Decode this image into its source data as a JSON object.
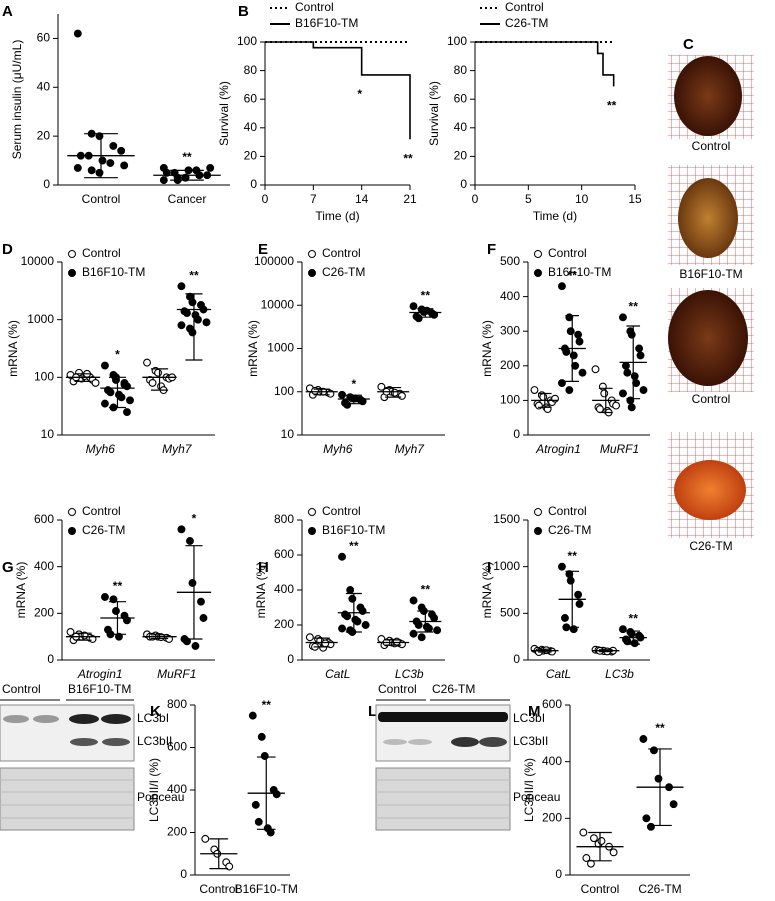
{
  "chart_data": [
    {
      "panel": "A",
      "type": "dot",
      "ylabel": "Serum insulin (μU/mL)",
      "categories": [
        "Control",
        "Cancer"
      ],
      "ylim": [
        0,
        70
      ],
      "yticks": [
        0,
        20,
        40,
        60
      ],
      "series": [
        {
          "color": "#000",
          "markers": [
            "filled",
            "filled"
          ],
          "values": [
            [
              62,
              21,
              20,
              16,
              14,
              12,
              12,
              10,
              9,
              8,
              7,
              6,
              5
            ],
            [
              2,
              3,
              3,
              4,
              4,
              5,
              5,
              6,
              6,
              7,
              7,
              2,
              3,
              4
            ]
          ],
          "means": [
            12,
            4
          ],
          "sds": [
            9,
            2
          ],
          "significance": [
            null,
            "**"
          ]
        }
      ]
    },
    {
      "panel": "B",
      "type": "line",
      "step": true,
      "xlabel": "Time (d)",
      "ylabel": "Survival (%)",
      "x": [
        0,
        7,
        14,
        21
      ],
      "xlim": [
        0,
        21
      ],
      "xticks": [
        0,
        7,
        14,
        21
      ],
      "ylim": [
        0,
        100
      ],
      "yticks": [
        0,
        20,
        40,
        60,
        80,
        100
      ],
      "series": [
        {
          "name": "Control",
          "color": "#000",
          "dash": "dotted",
          "values": [
            100,
            100,
            100,
            100
          ],
          "significance": [
            null,
            null,
            null,
            null
          ]
        },
        {
          "name": "B16F10-TM",
          "color": "#000",
          "dash": "solid",
          "values": [
            100,
            96,
            77,
            32
          ],
          "significance": [
            null,
            null,
            "*",
            "**"
          ]
        }
      ]
    },
    {
      "type": "line",
      "step": true,
      "xlabel": "Time (d)",
      "ylabel": "Survival (%)",
      "x": [
        0,
        11.5,
        12,
        13
      ],
      "xlim": [
        0,
        15
      ],
      "xticks": [
        0,
        5,
        10,
        15
      ],
      "ylim": [
        0,
        100
      ],
      "yticks": [
        0,
        20,
        40,
        60,
        80,
        100
      ],
      "series": [
        {
          "name": "Control",
          "color": "#000",
          "dash": "dotted",
          "values": [
            100,
            100,
            100,
            100
          ],
          "significance": [
            null,
            null,
            null,
            null
          ]
        },
        {
          "name": "C26-TM",
          "color": "#000",
          "dash": "solid",
          "values": [
            100,
            92,
            77,
            69
          ],
          "significance": [
            null,
            null,
            null,
            "**"
          ]
        }
      ]
    },
    {
      "panel": "D",
      "type": "dot",
      "log": true,
      "ylabel": "mRNA (%)",
      "categories": [
        "Myh6",
        "Myh7"
      ],
      "category_style": "italic",
      "ylim": [
        10,
        10000
      ],
      "yticks": [
        10,
        100,
        1000,
        10000
      ],
      "series": [
        {
          "name": "Control",
          "color": "#000",
          "markers": [
            "open",
            "open"
          ],
          "values": [
            [
              110,
              120,
              95,
              100,
              90,
              85,
              100,
              105,
              115,
              80
            ],
            [
              180,
              130,
              120,
              100,
              95,
              90,
              80,
              70,
              60,
              100
            ]
          ],
          "means": [
            100,
            100
          ],
          "sds": [
            15,
            40
          ],
          "significance": [
            null,
            null
          ]
        },
        {
          "name": "B16F10-TM",
          "color": "#000",
          "markers": [
            "filled",
            "filled"
          ],
          "values": [
            [
              160,
              110,
              100,
              80,
              70,
              60,
              55,
              50,
              45,
              40,
              35,
              30,
              90,
              75,
              25
            ],
            [
              3800,
              2500,
              2000,
              1800,
              1500,
              1400,
              1300,
              1200,
              1000,
              900,
              800,
              700,
              600
            ]
          ],
          "means": [
            65,
            1500
          ],
          "sds": [
            35,
            1300
          ],
          "significance": [
            "*",
            "**"
          ]
        }
      ]
    },
    {
      "panel": "E",
      "type": "dot",
      "log": true,
      "ylabel": "mRNA (%)",
      "categories": [
        "Myh6",
        "Myh7"
      ],
      "category_style": "italic",
      "ylim": [
        10,
        100000
      ],
      "yticks": [
        10,
        100,
        1000,
        10000,
        100000
      ],
      "series": [
        {
          "name": "Control",
          "color": "#000",
          "markers": [
            "open",
            "open"
          ],
          "values": [
            [
              120,
              110,
              100,
              95,
              90,
              85,
              105,
              100
            ],
            [
              130,
              110,
              100,
              90,
              80,
              75,
              100,
              95
            ]
          ],
          "means": [
            100,
            100
          ],
          "sds": [
            15,
            25
          ],
          "significance": [
            null,
            null
          ]
        },
        {
          "name": "C26-TM",
          "color": "#000",
          "markers": [
            "filled",
            "filled"
          ],
          "values": [
            [
              85,
              75,
              70,
              65,
              60,
              55,
              50,
              70
            ],
            [
              9500,
              8000,
              7000,
              6500,
              6000,
              5500,
              5000,
              7500
            ]
          ],
          "means": [
            68,
            6800
          ],
          "sds": [
            15,
            1500
          ],
          "significance": [
            "*",
            "**"
          ]
        }
      ]
    },
    {
      "panel": "F",
      "type": "dot",
      "ylabel": "mRNA (%)",
      "categories": [
        "Atrogin1",
        "MuRF1"
      ],
      "category_style": "italic",
      "ylim": [
        0,
        500
      ],
      "yticks": [
        0,
        100,
        200,
        300,
        400,
        500
      ],
      "series": [
        {
          "name": "Control",
          "color": "#000",
          "markers": [
            "open",
            "open"
          ],
          "values": [
            [
              130,
              115,
              110,
              100,
              95,
              90,
              85,
              80,
              75,
              105
            ],
            [
              190,
              140,
              120,
              100,
              90,
              80,
              75,
              70,
              65,
              85
            ]
          ],
          "means": [
            100,
            100
          ],
          "sds": [
            20,
            35
          ],
          "significance": [
            null,
            null
          ]
        },
        {
          "name": "B16F10-TM",
          "color": "#000",
          "markers": [
            "filled",
            "filled"
          ],
          "values": [
            [
              430,
              340,
              300,
              290,
              270,
              250,
              240,
              230,
              200,
              180,
              150,
              130
            ],
            [
              340,
              300,
              290,
              250,
              230,
              200,
              180,
              170,
              150,
              130,
              120,
              100,
              80
            ]
          ],
          "means": [
            250,
            210
          ],
          "sds": [
            95,
            105
          ],
          "significance": [
            "**",
            "**"
          ]
        }
      ]
    },
    {
      "panel": "G",
      "type": "dot",
      "ylabel": "mRNA (%)",
      "categories": [
        "Atrogin1",
        "MuRF1"
      ],
      "category_style": "italic",
      "ylim": [
        0,
        600
      ],
      "yticks": [
        0,
        200,
        400,
        600
      ],
      "series": [
        {
          "name": "Control",
          "color": "#000",
          "markers": [
            "open",
            "open"
          ],
          "values": [
            [
              120,
              110,
              100,
              95,
              90,
              85,
              100,
              105
            ],
            [
              110,
              105,
              100,
              95,
              90,
              100,
              100,
              98
            ]
          ],
          "means": [
            100,
            100
          ],
          "sds": [
            15,
            8
          ],
          "significance": [
            null,
            null
          ]
        },
        {
          "name": "C26-TM",
          "color": "#000",
          "markers": [
            "filled",
            "filled"
          ],
          "values": [
            [
              270,
              260,
              210,
              190,
              170,
              130,
              110,
              100
            ],
            [
              560,
              510,
              330,
              250,
              180,
              90,
              80,
              60
            ]
          ],
          "means": [
            180,
            290
          ],
          "sds": [
            70,
            200
          ],
          "significance": [
            "**",
            "*"
          ]
        }
      ]
    },
    {
      "panel": "H",
      "type": "dot",
      "ylabel": "mRNA (%)",
      "categories": [
        "CatL",
        "LC3b"
      ],
      "category_style": "italic",
      "ylim": [
        0,
        800
      ],
      "yticks": [
        0,
        200,
        400,
        600,
        800
      ],
      "series": [
        {
          "name": "Control",
          "color": "#000",
          "markers": [
            "open",
            "open"
          ],
          "values": [
            [
              130,
              120,
              110,
              100,
              90,
              80,
              75,
              70,
              95
            ],
            [
              120,
              110,
              100,
              95,
              90,
              85,
              100,
              95,
              105
            ]
          ],
          "means": [
            100,
            100
          ],
          "sds": [
            25,
            15
          ],
          "significance": [
            null,
            null
          ]
        },
        {
          "name": "B16F10-TM",
          "color": "#000",
          "markers": [
            "filled",
            "filled"
          ],
          "values": [
            [
              590,
              400,
              350,
              300,
              280,
              260,
              250,
              230,
              220,
              200,
              180,
              170,
              160
            ],
            [
              340,
              300,
              280,
              260,
              240,
              220,
              200,
              190,
              180,
              170,
              150,
              130
            ]
          ],
          "means": [
            270,
            220
          ],
          "sds": [
            110,
            60
          ],
          "significance": [
            "**",
            "**"
          ]
        }
      ]
    },
    {
      "panel": "I",
      "type": "dot",
      "ylabel": "mRNA (%)",
      "categories": [
        "CatL",
        "LC3b"
      ],
      "category_style": "italic",
      "ylim": [
        0,
        1500
      ],
      "yticks": [
        0,
        500,
        1000,
        1500
      ],
      "series": [
        {
          "name": "Control",
          "color": "#000",
          "markers": [
            "open",
            "open"
          ],
          "values": [
            [
              120,
              110,
              100,
              95,
              90,
              100,
              85,
              105
            ],
            [
              110,
              100,
              95,
              90,
              100,
              105,
              98,
              92
            ]
          ],
          "means": [
            100,
            100
          ],
          "sds": [
            15,
            10
          ],
          "significance": [
            null,
            null
          ]
        },
        {
          "name": "C26-TM",
          "color": "#000",
          "markers": [
            "filled",
            "filled"
          ],
          "values": [
            [
              1000,
              920,
              850,
              700,
              600,
              450,
              350,
              330
            ],
            [
              330,
              300,
              280,
              260,
              240,
              220,
              200,
              180
            ]
          ],
          "means": [
            650,
            240
          ],
          "sds": [
            300,
            70
          ],
          "significance": [
            "**",
            "**"
          ]
        }
      ]
    },
    {
      "panel": "K",
      "type": "dot",
      "ylabel": "LC3bII/I (%)",
      "categories": [
        "Control",
        "B16F10-TM"
      ],
      "ylim": [
        0,
        800
      ],
      "yticks": [
        0,
        200,
        400,
        600,
        800
      ],
      "series": [
        {
          "color": "#000",
          "markers": [
            "open",
            "filled"
          ],
          "values": [
            [
              170,
              120,
              100,
              60,
              40
            ],
            [
              750,
              650,
              560,
              400,
              380,
              330,
              250,
              220,
              200
            ]
          ],
          "means": [
            100,
            385
          ],
          "sds": [
            70,
            170
          ],
          "significance": [
            null,
            "**"
          ]
        }
      ]
    },
    {
      "panel": "M",
      "type": "dot",
      "ylabel": "LC3bII/I (%)",
      "categories": [
        "Control",
        "C26-TM"
      ],
      "ylim": [
        0,
        600
      ],
      "yticks": [
        0,
        200,
        400,
        600
      ],
      "series": [
        {
          "color": "#000",
          "markers": [
            "open",
            "filled"
          ],
          "values": [
            [
              150,
              130,
              110,
              100,
              80,
              60,
              40,
              120
            ],
            [
              480,
              440,
              340,
              310,
              250,
              200,
              170
            ]
          ],
          "means": [
            100,
            310
          ],
          "sds": [
            50,
            135
          ],
          "significance": [
            null,
            "**"
          ]
        }
      ]
    }
  ],
  "heart_photos": {
    "panel": "C",
    "labels": [
      "Control",
      "B16F10-TM",
      "Control",
      "C26-TM"
    ]
  },
  "blots": [
    {
      "panel": "J",
      "groups": [
        "Control",
        "B16F10-TM"
      ],
      "bands": [
        "LC3bI",
        "LC3bII",
        "Ponceau"
      ]
    },
    {
      "panel": "L",
      "groups": [
        "Control",
        "C26-TM"
      ],
      "bands": [
        "LC3bI",
        "LC3bII",
        "Ponceau"
      ]
    }
  ]
}
